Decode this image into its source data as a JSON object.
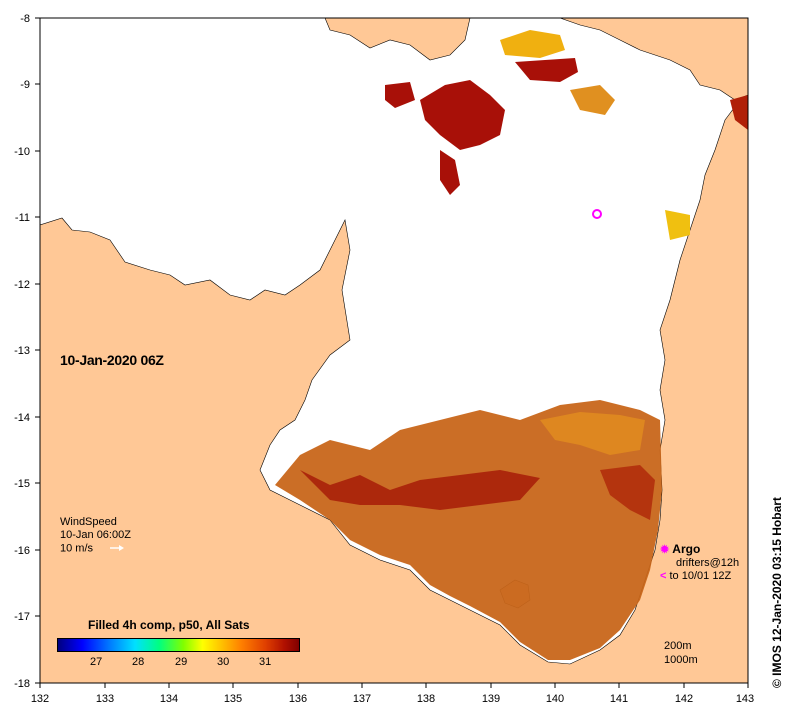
{
  "map": {
    "x_ticks": [
      "132",
      "133",
      "134",
      "135",
      "136",
      "137",
      "138",
      "139",
      "140",
      "141",
      "142",
      "143"
    ],
    "y_ticks": [
      "-8",
      "-9",
      "-10",
      "-11",
      "-12",
      "-13",
      "-14",
      "-15",
      "-16",
      "-17",
      "-18"
    ],
    "land_color": "#ffc896",
    "cloud_color": "#ffffff"
  },
  "timestamp_label": "10-Jan-2020 06Z",
  "wind": {
    "title": "WindSpeed",
    "time": "10-Jan 06:00Z",
    "scale": "10 m/s"
  },
  "legend": {
    "title": "Filled 4h comp, p50, All Sats",
    "ticks": [
      "27",
      "28",
      "29",
      "30",
      "31"
    ]
  },
  "argo": {
    "label": "Argo",
    "drifters_line1": "drifters@12h",
    "drifters_line2": "to 10/01 12Z"
  },
  "depth_contours": {
    "line1": "200m",
    "line2": "1000m"
  },
  "credit": "© IMOS 12-Jan-2020 03:15 Hobart"
}
